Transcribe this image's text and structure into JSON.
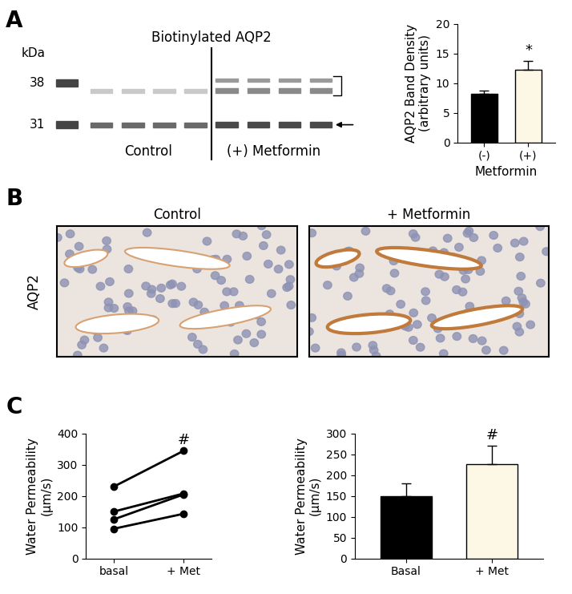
{
  "panel_labels": [
    "A",
    "B",
    "C"
  ],
  "blot": {
    "title": "Biotinylated AQP2",
    "marker_unit": "kDa",
    "markers": [
      38,
      31
    ],
    "groups": [
      "Control",
      "(+) Metformin"
    ]
  },
  "histology": {
    "stain": "AQP2",
    "images": [
      "Control",
      "+ Metformin"
    ]
  },
  "chart_data": [
    {
      "type": "bar",
      "categories": [
        "(-)",
        "(+)"
      ],
      "values": [
        8.2,
        12.3
      ],
      "errors": [
        0.6,
        1.4
      ],
      "colors": [
        "#000000",
        "#fdf8e6"
      ],
      "x_label": "Metformin",
      "y_label": "AQP2 Band Density\n(arbitrary units)",
      "ylim": [
        0,
        20
      ],
      "yticks": [
        0,
        5,
        10,
        15,
        20
      ],
      "annotations": [
        {
          "category": "(+)",
          "text": "*"
        }
      ]
    },
    {
      "type": "line",
      "categories": [
        "basal",
        "+ Met"
      ],
      "series": [
        {
          "values": [
            230,
            345
          ]
        },
        {
          "values": [
            150,
            208
          ]
        },
        {
          "values": [
            125,
            205
          ]
        },
        {
          "values": [
            95,
            143
          ]
        }
      ],
      "color": "#000000",
      "marker": "o",
      "y_label": "Water Permeability\n(µm/s)",
      "ylim": [
        0,
        400
      ],
      "yticks": [
        0,
        100,
        200,
        300,
        400
      ],
      "annotations": [
        {
          "category": "+ Met",
          "text": "#"
        }
      ]
    },
    {
      "type": "bar",
      "categories": [
        "Basal",
        "+ Met"
      ],
      "values": [
        150,
        226
      ],
      "errors": [
        30,
        45
      ],
      "colors": [
        "#000000",
        "#fdf8e6"
      ],
      "y_label": "Water Permeability\n(µm/s)",
      "ylim": [
        0,
        300
      ],
      "yticks": [
        0,
        50,
        100,
        150,
        200,
        250,
        300
      ],
      "annotations": [
        {
          "category": "+ Met",
          "text": "#"
        }
      ]
    }
  ]
}
